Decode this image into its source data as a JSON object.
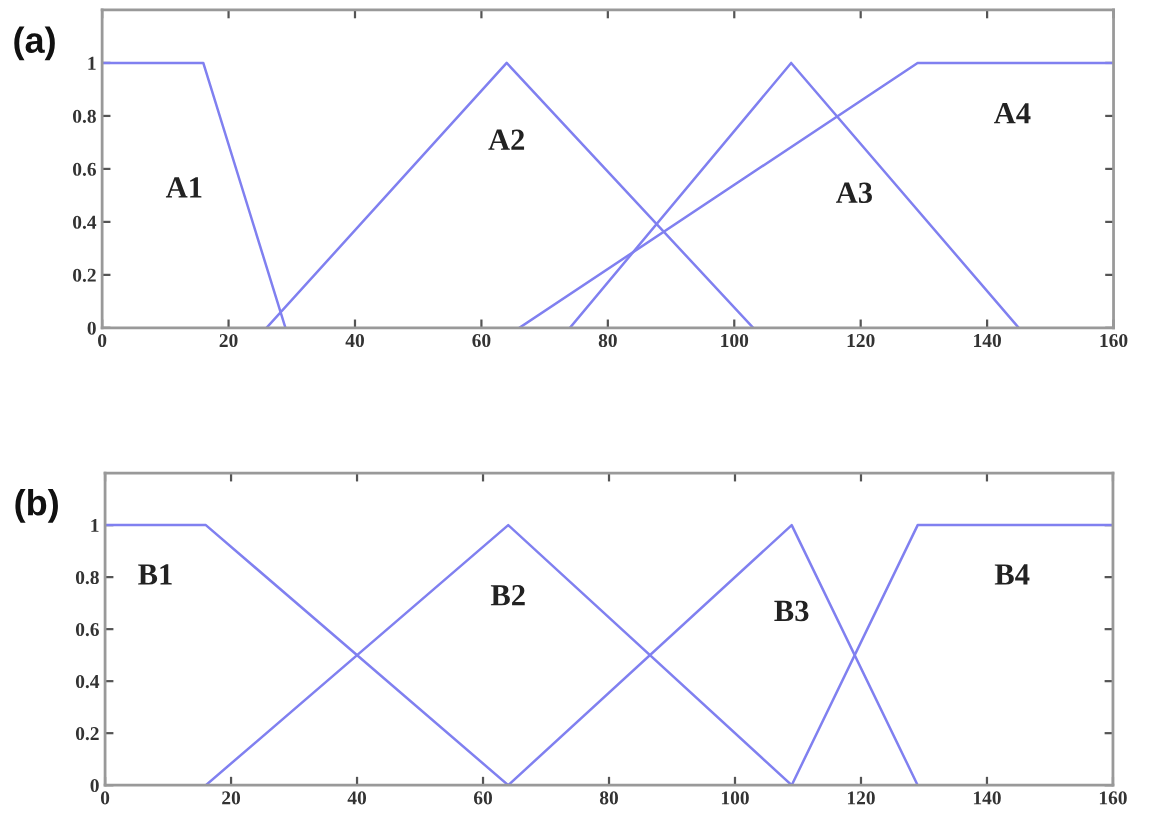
{
  "chart_data": [
    {
      "type": "line",
      "title": "(a)",
      "xlim": [
        0,
        160
      ],
      "xticks": [
        0,
        20,
        40,
        60,
        80,
        100,
        120,
        140,
        160
      ],
      "ylim": [
        0,
        1.2
      ],
      "yticks": [
        0,
        0.2,
        0.4,
        0.6,
        0.8,
        1
      ],
      "series": [
        {
          "name": "A1",
          "color": "#8080f0",
          "x": [
            0,
            16,
            29
          ],
          "values": [
            1,
            1,
            0
          ]
        },
        {
          "name": "A2",
          "color": "#8080f0",
          "x": [
            26,
            64,
            103
          ],
          "values": [
            0,
            1,
            0
          ]
        },
        {
          "name": "A3",
          "color": "#8080f0",
          "x": [
            74,
            109,
            145
          ],
          "values": [
            0,
            1,
            0
          ]
        },
        {
          "name": "A4",
          "color": "#8080f0",
          "x": [
            66,
            129,
            160
          ],
          "values": [
            0,
            1,
            1
          ]
        }
      ]
    },
    {
      "type": "line",
      "title": "(b)",
      "xlim": [
        0,
        160
      ],
      "xticks": [
        0,
        20,
        40,
        60,
        80,
        100,
        120,
        140,
        160
      ],
      "ylim": [
        0,
        1.2
      ],
      "yticks": [
        0,
        0.2,
        0.4,
        0.6,
        0.8,
        1
      ],
      "series": [
        {
          "name": "B1",
          "color": "#8080f0",
          "x": [
            0,
            16,
            64
          ],
          "values": [
            1,
            1,
            0
          ]
        },
        {
          "name": "B2",
          "color": "#8080f0",
          "x": [
            16,
            64,
            109
          ],
          "values": [
            0,
            1,
            0
          ]
        },
        {
          "name": "B3",
          "color": "#8080f0",
          "x": [
            64,
            109,
            129
          ],
          "values": [
            0,
            1,
            0
          ]
        },
        {
          "name": "B4",
          "color": "#8080f0",
          "x": [
            109,
            129,
            160
          ],
          "values": [
            0,
            1,
            1
          ]
        }
      ]
    }
  ]
}
